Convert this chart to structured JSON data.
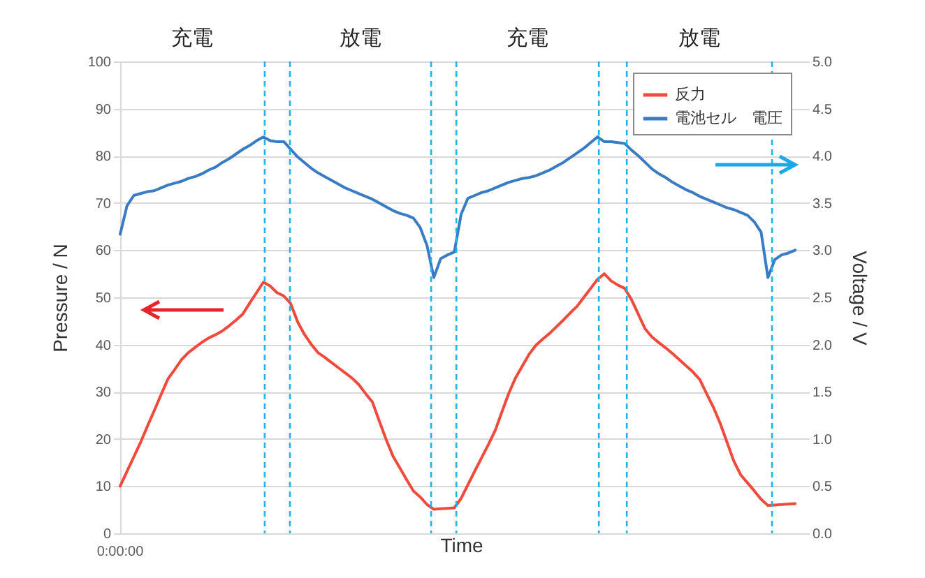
{
  "chart_data": {
    "type": "line",
    "xlabel": "Time",
    "ylabel": "Pressure / N",
    "y2label": "Voltage / V",
    "annotations": [
      "0:00:00",
      "充電",
      "放電",
      "充電",
      "放電"
    ],
    "categories": [
      null,
      null,
      null,
      null,
      null,
      null,
      null,
      null,
      null,
      null,
      null,
      null,
      null,
      null,
      null,
      null,
      null,
      null,
      null,
      null,
      null,
      null,
      null,
      null,
      null,
      null,
      null,
      null,
      null,
      null,
      null,
      null,
      null,
      null,
      null,
      null,
      null,
      null,
      null,
      null,
      null,
      null,
      null,
      null,
      null,
      null,
      null,
      null,
      null,
      null,
      null,
      null,
      null,
      null,
      null,
      null,
      null,
      null,
      null,
      null,
      null,
      null,
      null,
      null,
      null,
      null,
      null,
      null,
      null,
      null,
      null,
      null,
      null,
      null,
      null,
      null,
      null,
      null,
      null,
      null,
      null,
      null,
      null,
      null,
      null,
      null,
      null,
      null,
      null,
      null,
      null,
      null,
      null,
      null,
      null,
      null,
      null,
      null,
      null,
      null
    ],
    "ylim": [
      0,
      100
    ],
    "yticks": [
      0,
      10,
      20,
      30,
      40,
      50,
      60,
      70,
      80,
      90,
      100
    ],
    "y2lim": [
      0,
      5
    ],
    "y2ticks": [
      {
        "value": 0,
        "label": "0.0"
      },
      {
        "value": 0.5,
        "label": "0.5"
      },
      {
        "value": 1,
        "label": "1.0"
      },
      {
        "value": 1.5,
        "label": "1.5"
      },
      {
        "value": 2,
        "label": "2.0"
      },
      {
        "value": 2.5,
        "label": "2.5"
      },
      {
        "value": 3,
        "label": "3.0"
      },
      {
        "value": 3.5,
        "label": "3.5"
      },
      {
        "value": 4,
        "label": "4.0"
      },
      {
        "value": 4.5,
        "label": "4.5"
      },
      {
        "value": 5,
        "label": "5.0"
      }
    ],
    "grid": true,
    "legend": "top right",
    "line_style": "solid",
    "series": [
      {
        "name": "反力",
        "color": "#f04a3c",
        "values": [
          10,
          13.1,
          16.2,
          19.3,
          22.7,
          26,
          29.4,
          32.7,
          34.7,
          36.8,
          38.3,
          39.4,
          40.5,
          41.4,
          42.1,
          42.9,
          44,
          45.2,
          46.5,
          48.8,
          51,
          53.2,
          52.4,
          51,
          50.3,
          48.7,
          44.9,
          42.2,
          40.1,
          38.3,
          37.3,
          36.2,
          35.1,
          34,
          32.9,
          31.5,
          29.6,
          27.8,
          23.8,
          19.9,
          16.4,
          13.9,
          11.4,
          9,
          7.7,
          6.1,
          5.1,
          5.2,
          5.3,
          5.4,
          7.4,
          10.3,
          13.2,
          16,
          18.8,
          21.8,
          25.8,
          29.7,
          33,
          35.5,
          38,
          39.9,
          41.2,
          42.4,
          43.8,
          45.2,
          46.7,
          48.1,
          50,
          51.9,
          53.8,
          55,
          53.5,
          52.6,
          51.9,
          49.5,
          46.4,
          43.3,
          41.6,
          40.4,
          39.3,
          38.1,
          36.8,
          35.5,
          34.2,
          32.6,
          29.6,
          26.7,
          23.3,
          19.3,
          15.3,
          12.4,
          10.7,
          9,
          7.2,
          5.9,
          6,
          6.1,
          6.2,
          6.3
        ]
      },
      {
        "name": "電池セル　電圧",
        "color": "#3a7cc4",
        "axis": "y2",
        "values": [
          3.17,
          3.47,
          3.58,
          3.6,
          3.62,
          3.63,
          3.66,
          3.69,
          3.71,
          3.73,
          3.76,
          3.78,
          3.81,
          3.85,
          3.88,
          3.93,
          3.97,
          4.02,
          4.07,
          4.11,
          4.16,
          4.2,
          4.16,
          4.15,
          4.15,
          4.07,
          3.99,
          3.93,
          3.87,
          3.82,
          3.78,
          3.74,
          3.7,
          3.66,
          3.63,
          3.6,
          3.57,
          3.54,
          3.5,
          3.46,
          3.42,
          3.39,
          3.37,
          3.34,
          3.24,
          3.05,
          2.71,
          2.91,
          2.95,
          2.98,
          3.38,
          3.55,
          3.58,
          3.61,
          3.63,
          3.66,
          3.69,
          3.72,
          3.74,
          3.76,
          3.77,
          3.79,
          3.82,
          3.85,
          3.89,
          3.93,
          3.98,
          4.03,
          4.08,
          4.14,
          4.2,
          4.15,
          4.15,
          4.14,
          4.13,
          4.06,
          4,
          3.93,
          3.86,
          3.81,
          3.77,
          3.72,
          3.68,
          3.64,
          3.61,
          3.57,
          3.54,
          3.51,
          3.48,
          3.45,
          3.43,
          3.4,
          3.37,
          3.3,
          3.19,
          2.71,
          2.9,
          2.95,
          2.97,
          3
        ]
      }
    ]
  }
}
